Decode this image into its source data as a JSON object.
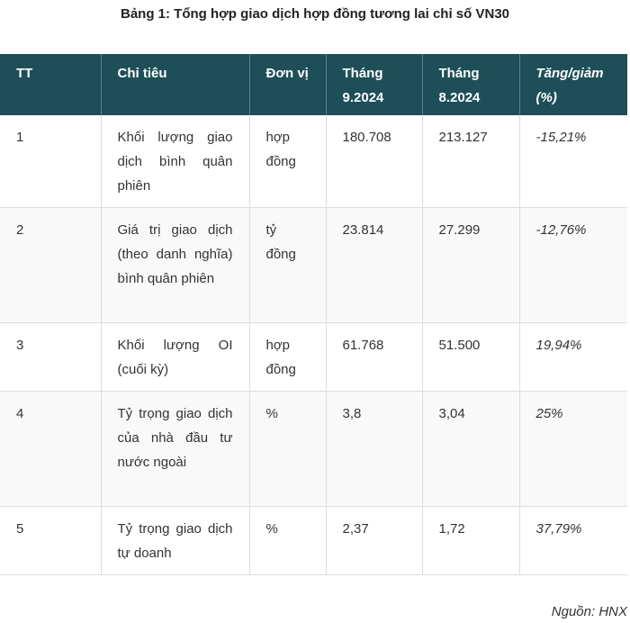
{
  "caption": "Bảng 1: Tổng hợp giao dịch hợp đồng tương lai chỉ số VN30",
  "table": {
    "headers": {
      "tt": "TT",
      "indicator": "Chỉ tiêu",
      "unit": "Đơn vị",
      "sep": "Tháng 9.2024",
      "aug": "Tháng 8.2024",
      "change": "Tăng/giảm (%)"
    },
    "rows": [
      {
        "tt": "1",
        "indicator": "Khối lượng giao dịch bình quân phiên",
        "unit": "hợp đồng",
        "sep": "180.708",
        "aug": "213.127",
        "change": "-15,21%"
      },
      {
        "tt": "2",
        "indicator": "Giá trị giao dịch (theo danh nghĩa) bình quân phiên",
        "unit": "tỷ đồng",
        "sep": "23.814",
        "aug": "27.299",
        "change": "-12,76%"
      },
      {
        "tt": "3",
        "indicator": "Khối lượng OI (cuối kỳ)",
        "unit": "hợp đồng",
        "sep": "61.768",
        "aug": "51.500",
        "change": "19,94%"
      },
      {
        "tt": "4",
        "indicator": "Tỷ trọng giao dịch của nhà đầu tư nước ngoài",
        "unit": "%",
        "sep": "3,8",
        "aug": "3,04",
        "change": "25%"
      },
      {
        "tt": "5",
        "indicator": "Tỷ trọng giao dịch tự doanh",
        "unit": "%",
        "sep": "2,37",
        "aug": "1,72",
        "change": "37,79%"
      }
    ]
  },
  "source": "Nguồn: HNX"
}
